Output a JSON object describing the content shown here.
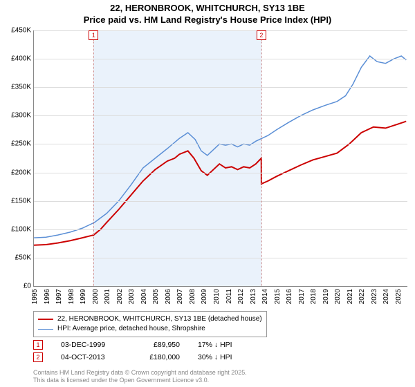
{
  "title_line1": "22, HERONBROOK, WHITCHURCH, SY13 1BE",
  "title_line2": "Price paid vs. HM Land Registry's House Price Index (HPI)",
  "chart": {
    "type": "line",
    "background_color": "#ffffff",
    "grid_color": "#dddddd",
    "band_color": "#eaf2fb",
    "xlim": [
      1995,
      2025.8
    ],
    "ylim": [
      0,
      450000
    ],
    "ytick_step": 50000,
    "yticks": [
      "£0",
      "£50K",
      "£100K",
      "£150K",
      "£200K",
      "£250K",
      "£300K",
      "£350K",
      "£400K",
      "£450K"
    ],
    "xticks": [
      1995,
      1996,
      1997,
      1998,
      1999,
      2000,
      2001,
      2002,
      2003,
      2004,
      2005,
      2006,
      2007,
      2008,
      2009,
      2010,
      2011,
      2012,
      2013,
      2014,
      2015,
      2016,
      2017,
      2018,
      2019,
      2020,
      2021,
      2022,
      2023,
      2024,
      2025
    ],
    "markers": [
      {
        "num": "1",
        "x": 1999.93,
        "top": 0
      },
      {
        "num": "2",
        "x": 2013.76,
        "top": 0
      }
    ],
    "series": [
      {
        "name": "price_paid",
        "label": "22, HERONBROOK, WHITCHURCH, SY13 1BE (detached house)",
        "color": "#cc0000",
        "width": 2,
        "points": [
          [
            1995.0,
            72000
          ],
          [
            1996.0,
            73000
          ],
          [
            1997.0,
            76000
          ],
          [
            1998.0,
            80000
          ],
          [
            1999.0,
            85000
          ],
          [
            1999.93,
            89950
          ],
          [
            2000.5,
            100000
          ],
          [
            2001.0,
            112000
          ],
          [
            2002.0,
            135000
          ],
          [
            2003.0,
            160000
          ],
          [
            2004.0,
            185000
          ],
          [
            2005.0,
            205000
          ],
          [
            2006.0,
            220000
          ],
          [
            2006.6,
            225000
          ],
          [
            2007.0,
            232000
          ],
          [
            2007.7,
            238000
          ],
          [
            2008.2,
            225000
          ],
          [
            2008.8,
            203000
          ],
          [
            2009.3,
            195000
          ],
          [
            2009.8,
            205000
          ],
          [
            2010.3,
            215000
          ],
          [
            2010.8,
            208000
          ],
          [
            2011.3,
            210000
          ],
          [
            2011.8,
            205000
          ],
          [
            2012.3,
            210000
          ],
          [
            2012.8,
            208000
          ],
          [
            2013.3,
            215000
          ],
          [
            2013.75,
            225000
          ],
          [
            2013.76,
            180000
          ],
          [
            2014.3,
            185000
          ],
          [
            2015.0,
            193000
          ],
          [
            2016.0,
            203000
          ],
          [
            2017.0,
            213000
          ],
          [
            2018.0,
            222000
          ],
          [
            2019.0,
            228000
          ],
          [
            2020.0,
            234000
          ],
          [
            2021.0,
            250000
          ],
          [
            2022.0,
            270000
          ],
          [
            2023.0,
            280000
          ],
          [
            2024.0,
            278000
          ],
          [
            2025.0,
            285000
          ],
          [
            2025.7,
            290000
          ]
        ]
      },
      {
        "name": "hpi",
        "label": "HPI: Average price, detached house, Shropshire",
        "color": "#5b8fd6",
        "width": 1.5,
        "points": [
          [
            1995.0,
            85000
          ],
          [
            1996.0,
            86000
          ],
          [
            1997.0,
            90000
          ],
          [
            1998.0,
            95000
          ],
          [
            1999.0,
            102000
          ],
          [
            2000.0,
            112000
          ],
          [
            2001.0,
            128000
          ],
          [
            2002.0,
            150000
          ],
          [
            2003.0,
            178000
          ],
          [
            2004.0,
            208000
          ],
          [
            2005.0,
            225000
          ],
          [
            2006.0,
            242000
          ],
          [
            2007.0,
            260000
          ],
          [
            2007.7,
            270000
          ],
          [
            2008.3,
            258000
          ],
          [
            2008.8,
            238000
          ],
          [
            2009.3,
            230000
          ],
          [
            2009.8,
            240000
          ],
          [
            2010.3,
            250000
          ],
          [
            2010.8,
            248000
          ],
          [
            2011.3,
            250000
          ],
          [
            2011.8,
            245000
          ],
          [
            2012.3,
            250000
          ],
          [
            2012.8,
            248000
          ],
          [
            2013.3,
            255000
          ],
          [
            2013.8,
            260000
          ],
          [
            2014.3,
            265000
          ],
          [
            2015.0,
            275000
          ],
          [
            2016.0,
            288000
          ],
          [
            2017.0,
            300000
          ],
          [
            2018.0,
            310000
          ],
          [
            2019.0,
            318000
          ],
          [
            2020.0,
            325000
          ],
          [
            2020.7,
            335000
          ],
          [
            2021.3,
            355000
          ],
          [
            2022.0,
            385000
          ],
          [
            2022.7,
            405000
          ],
          [
            2023.3,
            395000
          ],
          [
            2024.0,
            392000
          ],
          [
            2024.7,
            400000
          ],
          [
            2025.3,
            405000
          ],
          [
            2025.7,
            398000
          ]
        ]
      }
    ]
  },
  "legend": {
    "items": [
      {
        "color": "#cc0000",
        "width": 2,
        "label": "22, HERONBROOK, WHITCHURCH, SY13 1BE (detached house)"
      },
      {
        "color": "#5b8fd6",
        "width": 1.5,
        "label": "HPI: Average price, detached house, Shropshire"
      }
    ]
  },
  "sales": [
    {
      "num": "1",
      "date": "03-DEC-1999",
      "price": "£89,950",
      "pct": "17% ↓ HPI"
    },
    {
      "num": "2",
      "date": "04-OCT-2013",
      "price": "£180,000",
      "pct": "30% ↓ HPI"
    }
  ],
  "footnote_line1": "Contains HM Land Registry data © Crown copyright and database right 2025.",
  "footnote_line2": "This data is licensed under the Open Government Licence v3.0."
}
